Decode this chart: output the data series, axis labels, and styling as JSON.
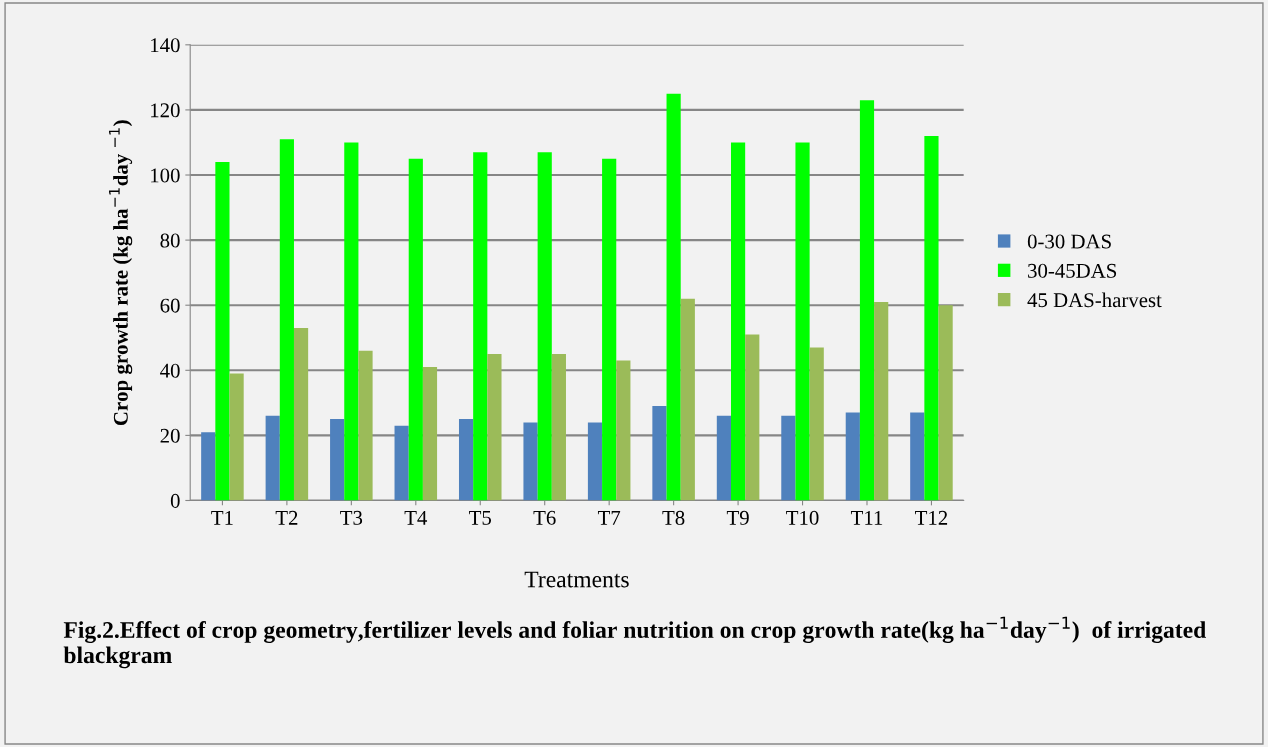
{
  "chart_data": {
    "type": "bar",
    "xlabel": "Treatments",
    "ylabel": "Crop growth rate (kg ha$^{−1}$day $^{−1}$)",
    "categories": [
      "T1",
      "T2",
      "T3",
      "T4",
      "T5",
      "T6",
      "T7",
      "T8",
      "T9",
      "T10",
      "T11",
      "T12"
    ],
    "series": [
      {
        "name": "0-30 DAS",
        "color": "#4f81bd",
        "values": [
          21,
          26,
          25,
          23,
          25,
          24,
          24,
          29,
          26,
          26,
          27,
          27
        ]
      },
      {
        "name": "30-45DAS",
        "color": "#00ff00",
        "values": [
          104,
          111,
          110,
          105,
          107,
          107,
          105,
          125,
          110,
          110,
          123,
          112
        ]
      },
      {
        "name": "45 DAS-harvest",
        "color": "#9bbb59",
        "values": [
          39,
          53,
          46,
          41,
          45,
          45,
          43,
          62,
          51,
          47,
          61,
          60
        ]
      }
    ],
    "ylim": [
      0,
      140
    ],
    "yticks": [
      0,
      20,
      40,
      60,
      80,
      100,
      120,
      140
    ],
    "grid": "y",
    "legend": "right",
    "annotations": [
      "Fig.2.Effect of crop geometry,fertilizer levels and foliar nutrition on crop growth rate(kg ha$^{−1}$day$^{−1}$)  of irrigated blackgram"
    ]
  }
}
